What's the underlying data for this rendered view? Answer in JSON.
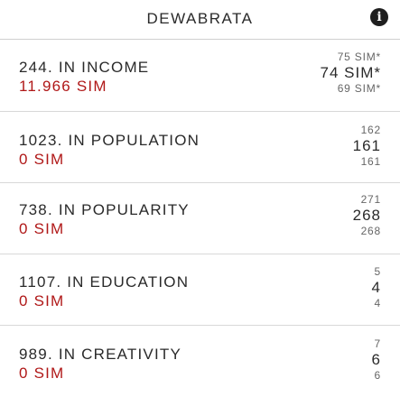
{
  "header": {
    "title": "DEWABRATA",
    "info_icon": "i"
  },
  "rankings": [
    {
      "rank": "244.",
      "category": "IN INCOME",
      "value": "11.966 SIM",
      "top": "75 SIM*",
      "mid": "74 SIM*",
      "bottom": "69 SIM*"
    },
    {
      "rank": "1023.",
      "category": "IN POPULATION",
      "value": "0 SIM",
      "top": "162",
      "mid": "161",
      "bottom": "161"
    },
    {
      "rank": "738.",
      "category": "IN POPULARITY",
      "value": "0 SIM",
      "top": "271",
      "mid": "268",
      "bottom": "268"
    },
    {
      "rank": "1107.",
      "category": "IN EDUCATION",
      "value": "0 SIM",
      "top": "5",
      "mid": "4",
      "bottom": "4"
    },
    {
      "rank": "989.",
      "category": "IN CREATIVITY",
      "value": "0 SIM",
      "top": "7",
      "mid": "6",
      "bottom": "6"
    }
  ],
  "colors": {
    "value_red": "#b01818",
    "divider": "#d8d8d8"
  }
}
